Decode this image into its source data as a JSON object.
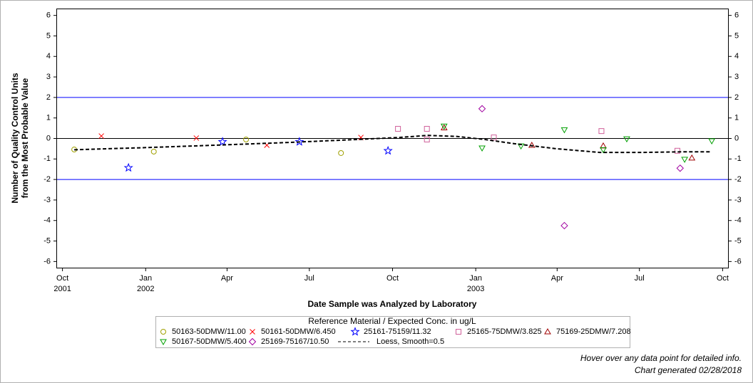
{
  "chart_data": {
    "type": "scatter",
    "xlabel": "Date Sample was Analyzed by Laboratory",
    "ylabel": [
      "Number of Quality Control Units",
      "from the Most Probable Value"
    ],
    "xlim": [
      "2001-09-25",
      "2003-10-07"
    ],
    "ylim": [
      -6.3,
      6.3
    ],
    "xticks": [
      {
        "value": "2001-10-01",
        "label": "Oct 2001"
      },
      {
        "value": "2002-01-01",
        "label": "Jan 2002"
      },
      {
        "value": "2002-04-01",
        "label": "Apr"
      },
      {
        "value": "2002-07-01",
        "label": "Jul"
      },
      {
        "value": "2002-10-01",
        "label": "Oct"
      },
      {
        "value": "2003-01-01",
        "label": "Jan 2003"
      },
      {
        "value": "2003-04-01",
        "label": "Apr"
      },
      {
        "value": "2003-07-01",
        "label": "Jul"
      },
      {
        "value": "2003-10-01",
        "label": "Oct"
      }
    ],
    "yticks": [
      -6,
      -5,
      -4,
      -3,
      -2,
      -1,
      0,
      1,
      2,
      3,
      4,
      5,
      6
    ],
    "reference_lines": [
      {
        "value": 0,
        "color": "#000000"
      },
      {
        "value": 2,
        "color": "#0000ff"
      },
      {
        "value": -2,
        "color": "#0000ff"
      }
    ],
    "legend_title": "Reference Material / Expected Conc. in ug/L",
    "series": [
      {
        "name": "50163-50DMW/11.00",
        "color": "#a0a000",
        "marker": "circle",
        "x": [
          "2001-10-14",
          "2002-01-10",
          "2002-04-22",
          "2002-08-05"
        ],
        "values": [
          -0.54,
          -0.64,
          -0.05,
          -0.71
        ]
      },
      {
        "name": "50161-50DMW/6.450",
        "color": "#ff0000",
        "marker": "x",
        "x": [
          "2001-11-13",
          "2002-02-26",
          "2002-05-15",
          "2002-08-27"
        ],
        "values": [
          0.12,
          0.02,
          -0.33,
          0.05
        ]
      },
      {
        "name": "25161-75159/11.32",
        "color": "#0000ff",
        "marker": "star",
        "x": [
          "2001-12-13",
          "2002-03-27",
          "2002-06-20",
          "2002-09-26"
        ],
        "values": [
          -1.43,
          -0.16,
          -0.16,
          -0.6
        ]
      },
      {
        "name": "25165-75DMW/3.825",
        "color": "#d0609a",
        "marker": "square",
        "x": [
          "2002-10-07",
          "2002-11-08",
          "2002-11-08",
          "2003-01-21",
          "2003-05-20",
          "2003-08-12"
        ],
        "values": [
          0.47,
          0.47,
          -0.05,
          0.05,
          0.36,
          -0.6
        ]
      },
      {
        "name": "75169-25DMW/7.208",
        "color": "#a00000",
        "marker": "triangle",
        "x": [
          "2002-11-27",
          "2003-03-04",
          "2003-05-22",
          "2003-08-28"
        ],
        "values": [
          0.52,
          -0.33,
          -0.36,
          -0.95
        ]
      },
      {
        "name": "50167-50DMW/5.400",
        "color": "#00a000",
        "marker": "triangle-down",
        "x": [
          "2002-11-27",
          "2003-01-08",
          "2003-02-20",
          "2003-04-09",
          "2003-05-22",
          "2003-06-17",
          "2003-08-20",
          "2003-09-19"
        ],
        "values": [
          0.6,
          -0.47,
          -0.37,
          0.42,
          -0.55,
          -0.02,
          -1.02,
          -0.12
        ]
      },
      {
        "name": "25169-75167/10.50",
        "color": "#a000a0",
        "marker": "diamond",
        "x": [
          "2003-01-08",
          "2003-04-09",
          "2003-08-15"
        ],
        "values": [
          1.45,
          -4.25,
          -1.45
        ]
      },
      {
        "name": "Loess, Smooth=0.5",
        "color": "#000000",
        "marker": "dashed-line",
        "x": [
          "2001-10-14",
          "2001-12-29",
          "2002-03-18",
          "2002-06-05",
          "2002-08-23",
          "2002-10-09",
          "2002-11-09",
          "2002-12-11",
          "2003-01-11",
          "2003-02-12",
          "2003-03-31",
          "2003-05-18",
          "2003-07-04",
          "2003-08-20",
          "2003-09-19"
        ],
        "values": [
          -0.55,
          -0.45,
          -0.33,
          -0.2,
          -0.05,
          0.05,
          0.15,
          0.1,
          -0.05,
          -0.25,
          -0.5,
          -0.68,
          -0.68,
          -0.65,
          -0.65
        ]
      }
    ],
    "footnotes": [
      "Hover over any data point for detailed info.",
      "Chart generated 02/28/2018"
    ]
  }
}
